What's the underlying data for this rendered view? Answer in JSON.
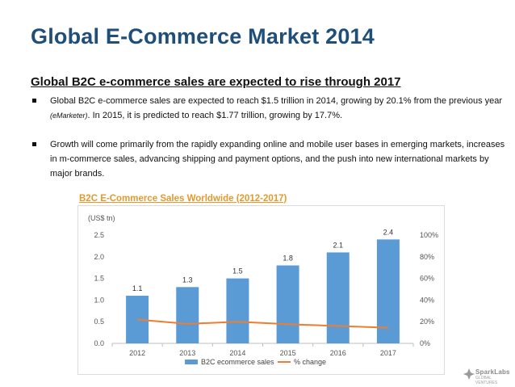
{
  "slide": {
    "title": "Global E-Commerce Market 2014",
    "subtitle": "Global B2C e-commerce sales are expected to rise through 2017",
    "bullets": [
      {
        "text_a": "Global B2C e-commerce sales are expected to reach $1.5 trillion in 2014, growing by 20.1% from the previous year ",
        "cite": "(eMarketer)",
        "text_b": ". In 2015, it is predicted to reach $1.77 trillion, growing by 17.7%."
      },
      {
        "text_a": "Growth will come primarily from the rapidly expanding online and mobile user bases in emerging markets, increases in m-commerce sales, advancing shipping and payment options, and the push into new international markets by major brands."
      }
    ]
  },
  "chart_data": {
    "type": "bar",
    "title": "B2C E-Commerce Sales Worldwide (2012-2017)",
    "unit_label": "(US$ tn)",
    "categories": [
      "2012",
      "2013",
      "2014",
      "2015",
      "2016",
      "2017"
    ],
    "series": [
      {
        "name": "B2C ecommerce sales",
        "type": "bar",
        "axis": "left",
        "values": [
          1.1,
          1.3,
          1.5,
          1.8,
          2.1,
          2.4
        ],
        "labels": [
          "1.1",
          "1.3",
          "1.5",
          "1.8",
          "2.1",
          "2.4"
        ]
      },
      {
        "name": "% change",
        "type": "line",
        "axis": "right",
        "values": [
          22,
          18,
          20,
          17.7,
          16,
          14.5
        ]
      }
    ],
    "y_left": {
      "min": 0,
      "max": 2.5,
      "ticks": [
        "0.0",
        "0.5",
        "1.0",
        "1.5",
        "2.0",
        "2.5"
      ]
    },
    "y_right": {
      "min": 0,
      "max": 100,
      "ticks": [
        "0%",
        "20%",
        "40%",
        "60%",
        "80%",
        "100%"
      ]
    },
    "legend_position": "bottom",
    "grid": false,
    "colors": {
      "bar": "#5b9bd5",
      "line": "#ed7d31",
      "title": "#e39a2c"
    }
  },
  "logo": {
    "name": "SparkLabs",
    "tag": "GLOBAL VENTURES"
  }
}
